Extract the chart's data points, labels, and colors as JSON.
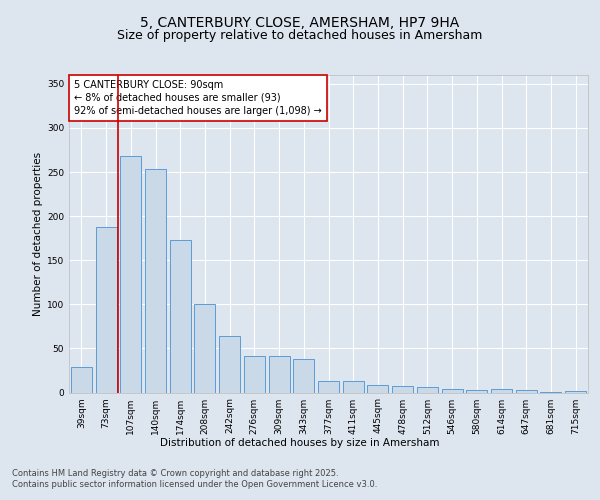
{
  "title_line1": "5, CANTERBURY CLOSE, AMERSHAM, HP7 9HA",
  "title_line2": "Size of property relative to detached houses in Amersham",
  "xlabel": "Distribution of detached houses by size in Amersham",
  "ylabel": "Number of detached properties",
  "categories": [
    "39sqm",
    "73sqm",
    "107sqm",
    "140sqm",
    "174sqm",
    "208sqm",
    "242sqm",
    "276sqm",
    "309sqm",
    "343sqm",
    "377sqm",
    "411sqm",
    "445sqm",
    "478sqm",
    "512sqm",
    "546sqm",
    "580sqm",
    "614sqm",
    "647sqm",
    "681sqm",
    "715sqm"
  ],
  "values": [
    29,
    188,
    268,
    253,
    173,
    100,
    64,
    41,
    41,
    38,
    13,
    13,
    9,
    7,
    6,
    4,
    3,
    4,
    3,
    1,
    2
  ],
  "bar_color": "#c9d9e8",
  "bar_edge_color": "#5b9bd5",
  "property_line_color": "#cc0000",
  "property_line_x": 1.5,
  "annotation_text": "5 CANTERBURY CLOSE: 90sqm\n← 8% of detached houses are smaller (93)\n92% of semi-detached houses are larger (1,098) →",
  "annotation_box_color": "#ffffff",
  "annotation_box_edge_color": "#cc0000",
  "ylim": [
    0,
    360
  ],
  "yticks": [
    0,
    50,
    100,
    150,
    200,
    250,
    300,
    350
  ],
  "background_color": "#dde5ef",
  "plot_bg_color": "#dde5ef",
  "grid_color": "#ffffff",
  "footer_line1": "Contains HM Land Registry data © Crown copyright and database right 2025.",
  "footer_line2": "Contains public sector information licensed under the Open Government Licence v3.0.",
  "title_fontsize": 10,
  "subtitle_fontsize": 9,
  "axis_label_fontsize": 7.5,
  "tick_fontsize": 6.5,
  "annotation_fontsize": 7,
  "footer_fontsize": 6
}
